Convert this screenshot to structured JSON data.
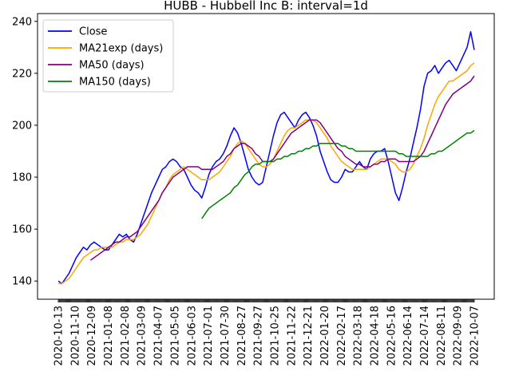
{
  "chart_data": {
    "type": "line",
    "title": "HUBB - Hubbell Inc B: interval=1d",
    "xlabel": "",
    "ylabel": "",
    "x_tick_labels": [
      "2020-10-13",
      "2020-11-10",
      "2020-12-09",
      "2021-01-08",
      "2021-02-08",
      "2021-03-09",
      "2021-04-07",
      "2021-05-05",
      "2021-06-03",
      "2021-07-01",
      "2021-07-30",
      "2021-08-27",
      "2021-09-27",
      "2021-10-25",
      "2021-11-22",
      "2021-12-21",
      "2022-01-20",
      "2022-02-17",
      "2022-03-18",
      "2022-04-18",
      "2022-05-16",
      "2022-06-14",
      "2022-07-14",
      "2022-08-11",
      "2022-09-09",
      "2022-10-07"
    ],
    "y_ticks": [
      140,
      160,
      180,
      200,
      220,
      240
    ],
    "ylim": [
      133,
      243
    ],
    "grid": false,
    "legend_position": "top-left",
    "series": [
      {
        "name": "Close",
        "color": "#0000ff",
        "values": [
          140,
          139,
          141,
          143,
          146,
          149,
          151,
          153,
          152,
          154,
          155,
          154,
          153,
          152,
          152,
          154,
          156,
          158,
          157,
          158,
          156,
          155,
          158,
          162,
          166,
          170,
          174,
          177,
          180,
          183,
          184,
          186,
          187,
          186,
          184,
          183,
          180,
          177,
          175,
          174,
          172,
          176,
          181,
          184,
          186,
          187,
          189,
          192,
          196,
          199,
          197,
          193,
          188,
          183,
          180,
          178,
          177,
          178,
          184,
          190,
          196,
          201,
          204,
          205,
          203,
          201,
          199,
          202,
          204,
          205,
          203,
          200,
          196,
          190,
          186,
          182,
          179,
          178,
          178,
          180,
          183,
          182,
          182,
          184,
          186,
          184,
          183,
          187,
          189,
          190,
          190,
          191,
          186,
          180,
          174,
          171,
          176,
          182,
          187,
          193,
          199,
          206,
          215,
          220,
          221,
          223,
          220,
          222,
          224,
          225,
          223,
          221,
          224,
          227,
          230,
          236,
          229
        ]
      },
      {
        "name": "MA21exp (days)",
        "color": "#ffa500",
        "values": [
          139,
          139,
          140,
          141,
          143,
          145,
          147,
          149,
          150,
          151,
          152,
          152,
          153,
          153,
          153,
          153,
          154,
          155,
          155,
          156,
          156,
          156,
          157,
          158,
          160,
          162,
          165,
          168,
          171,
          174,
          176,
          179,
          181,
          182,
          183,
          184,
          183,
          182,
          181,
          180,
          179,
          179,
          179,
          180,
          181,
          182,
          184,
          186,
          188,
          191,
          193,
          194,
          193,
          191,
          189,
          187,
          185,
          184,
          184,
          185,
          187,
          190,
          193,
          196,
          198,
          199,
          199,
          200,
          201,
          202,
          202,
          202,
          201,
          199,
          197,
          195,
          192,
          190,
          188,
          186,
          185,
          184,
          183,
          183,
          183,
          183,
          183,
          184,
          185,
          186,
          187,
          187,
          187,
          186,
          185,
          183,
          182,
          182,
          183,
          185,
          188,
          191,
          195,
          200,
          204,
          208,
          211,
          213,
          215,
          217,
          217,
          218,
          219,
          220,
          221,
          223,
          224
        ]
      },
      {
        "name": "MA50 (days)",
        "color": "#800080",
        "values": [
          null,
          null,
          null,
          null,
          null,
          null,
          null,
          null,
          null,
          148,
          149,
          150,
          151,
          152,
          153,
          154,
          155,
          155,
          156,
          157,
          157,
          158,
          159,
          161,
          163,
          165,
          167,
          169,
          171,
          174,
          176,
          178,
          180,
          181,
          182,
          183,
          184,
          184,
          184,
          184,
          183,
          183,
          183,
          183,
          184,
          185,
          186,
          188,
          189,
          191,
          192,
          193,
          193,
          192,
          191,
          189,
          188,
          186,
          186,
          186,
          187,
          189,
          191,
          193,
          195,
          197,
          198,
          199,
          200,
          201,
          202,
          202,
          202,
          201,
          199,
          197,
          195,
          193,
          191,
          190,
          188,
          187,
          186,
          185,
          185,
          184,
          184,
          184,
          185,
          185,
          186,
          186,
          187,
          187,
          187,
          186,
          186,
          186,
          186,
          186,
          187,
          188,
          190,
          193,
          196,
          199,
          202,
          205,
          208,
          210,
          212,
          213,
          214,
          215,
          216,
          217,
          219
        ]
      },
      {
        "name": "MA150 (days)",
        "color": "#008000",
        "values": [
          null,
          null,
          null,
          null,
          null,
          null,
          null,
          null,
          null,
          null,
          null,
          null,
          null,
          null,
          null,
          null,
          null,
          null,
          null,
          null,
          null,
          null,
          null,
          null,
          null,
          null,
          null,
          null,
          null,
          null,
          null,
          null,
          null,
          null,
          null,
          null,
          null,
          null,
          null,
          null,
          164,
          166,
          168,
          169,
          170,
          171,
          172,
          173,
          174,
          176,
          177,
          179,
          181,
          182,
          184,
          185,
          185,
          186,
          186,
          186,
          186,
          187,
          187,
          188,
          188,
          189,
          189,
          190,
          190,
          191,
          191,
          192,
          192,
          193,
          193,
          193,
          193,
          193,
          193,
          192,
          192,
          191,
          191,
          190,
          190,
          190,
          190,
          190,
          190,
          190,
          190,
          190,
          190,
          190,
          190,
          189,
          189,
          188,
          188,
          188,
          188,
          188,
          188,
          188,
          189,
          189,
          190,
          190,
          191,
          192,
          193,
          194,
          195,
          196,
          197,
          197,
          198
        ]
      }
    ]
  }
}
